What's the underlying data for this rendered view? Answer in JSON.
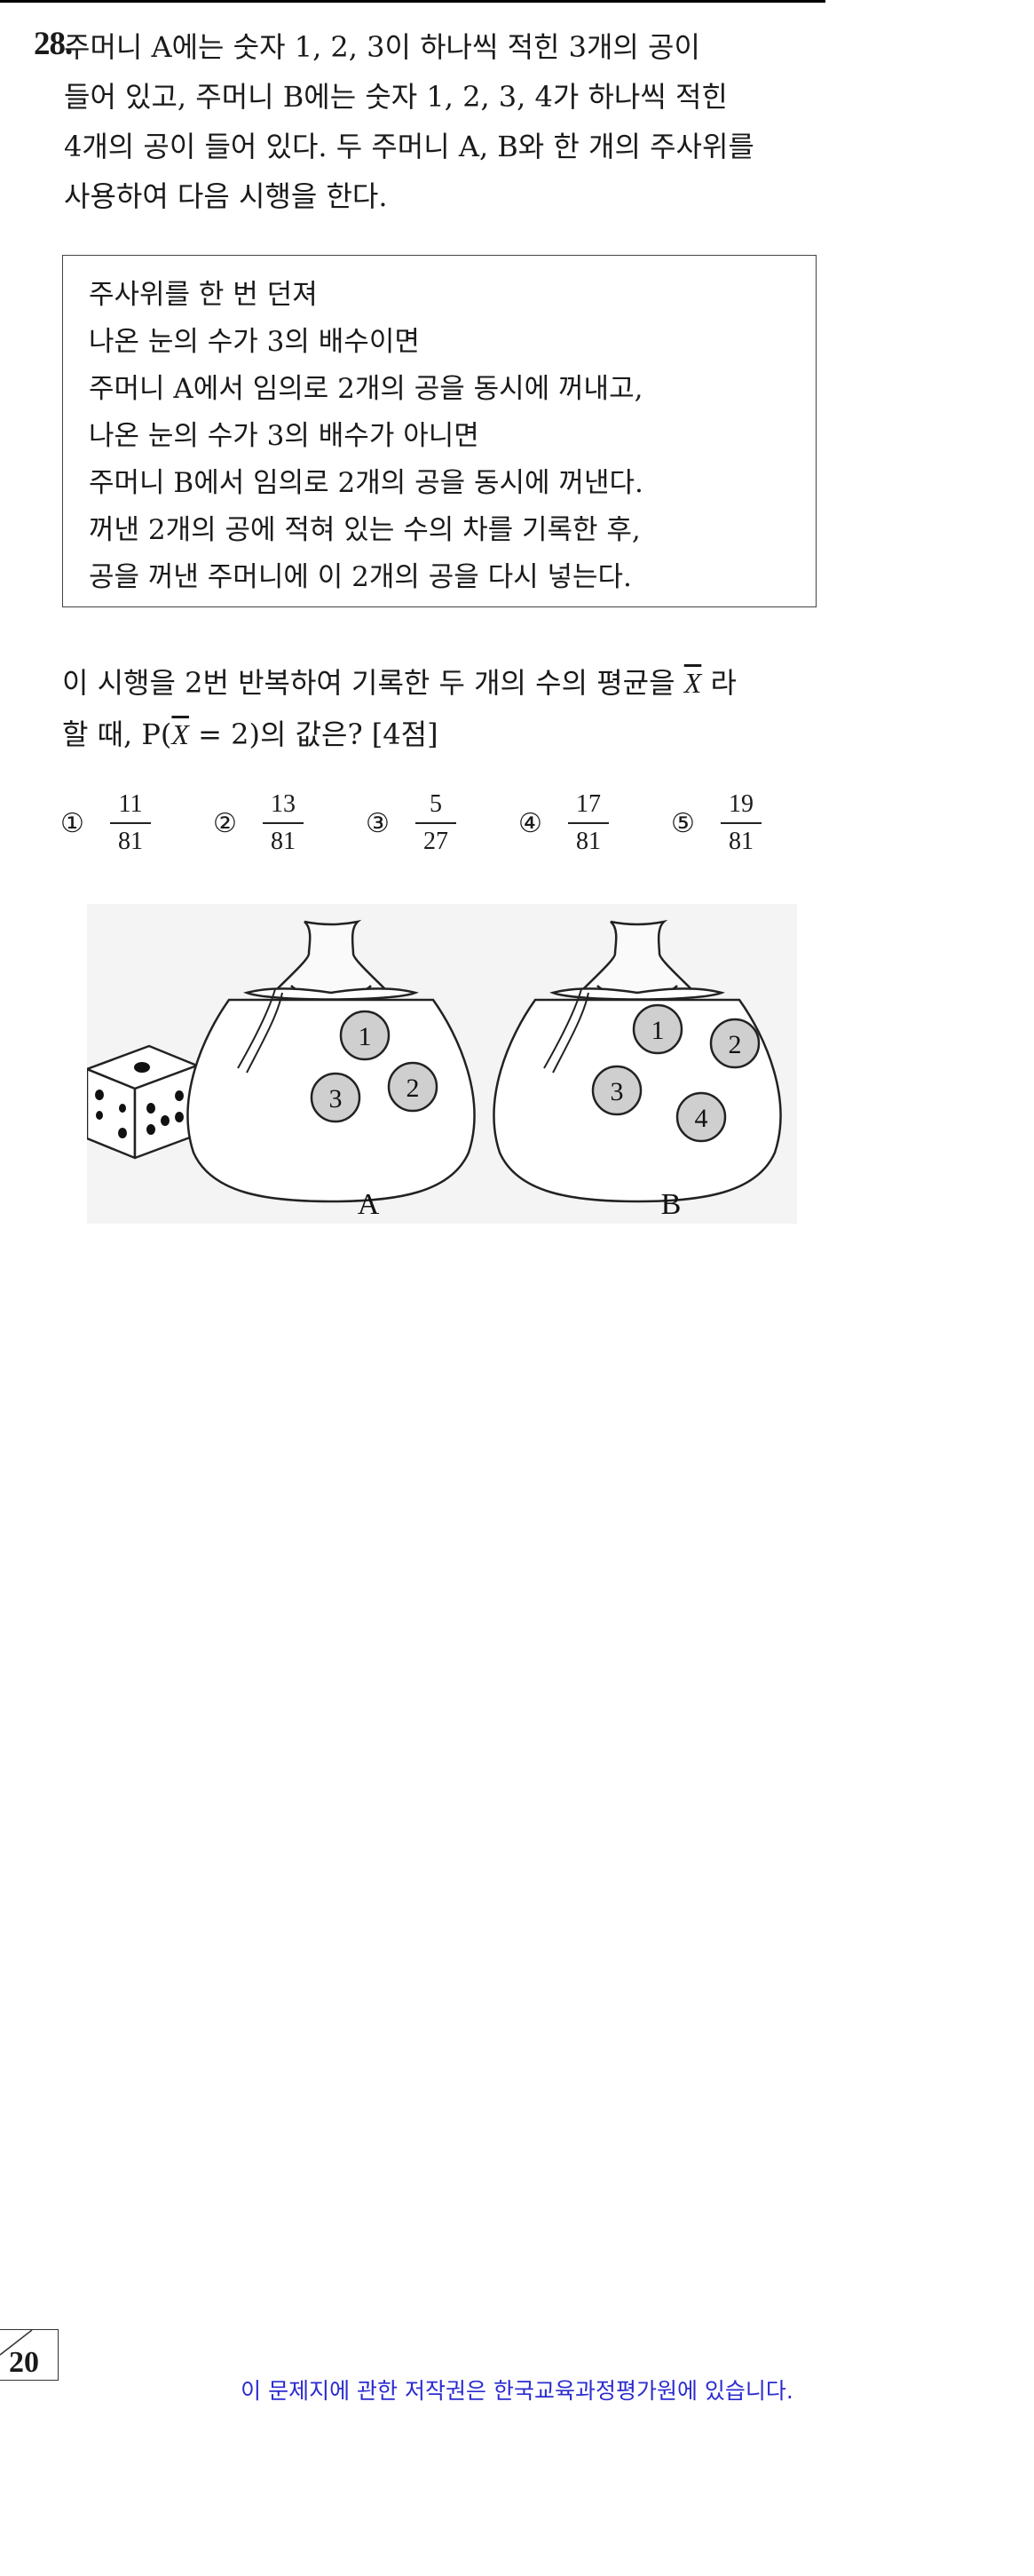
{
  "question": {
    "number": "28.",
    "lines": [
      "주머니 A에는 숫자 1, 2, 3이 하나씩 적힌 3개의 공이",
      "들어 있고, 주머니 B에는 숫자 1, 2, 3, 4가 하나씩 적힌",
      "4개의 공이 들어 있다. 두 주머니 A, B와 한 개의 주사위를",
      "사용하여 다음 시행을 한다."
    ]
  },
  "box": {
    "lines": [
      "주사위를 한 번 던져",
      "나온 눈의 수가 3의 배수이면",
      "주머니 A에서 임의로 2개의 공을 동시에 꺼내고,",
      "나온 눈의 수가 3의 배수가 아니면",
      "주머니 B에서 임의로 2개의 공을 동시에 꺼낸다.",
      "꺼낸 2개의 공에 적혀 있는 수의 차를 기록한 후,",
      "공을 꺼낸 주머니에 이 2개의 공을 다시 넣는다."
    ]
  },
  "followup": {
    "line1_pre": "이 시행을 2번 반복하여 기록한 두 개의 수의 평균을 ",
    "var": "X",
    "line1_post": " 라",
    "line2_pre": "할 때, P(",
    "line2_eq": " = 2)의 값은? [4점]"
  },
  "choices": [
    {
      "mark": "①",
      "num": "11",
      "den": "81"
    },
    {
      "mark": "②",
      "num": "13",
      "den": "81"
    },
    {
      "mark": "③",
      "num": "5",
      "den": "27"
    },
    {
      "mark": "④",
      "num": "17",
      "den": "81"
    },
    {
      "mark": "⑤",
      "num": "19",
      "den": "81"
    }
  ],
  "figure": {
    "bag_a_label": "A",
    "bag_b_label": "B",
    "bag_a_balls": [
      "1",
      "2",
      "3"
    ],
    "bag_b_balls": [
      "1",
      "2",
      "3",
      "4"
    ]
  },
  "footer": {
    "page_number": "20",
    "copyright": "이 문제지에 관한 저작권은 한국교육과정평가원에 있습니다."
  }
}
